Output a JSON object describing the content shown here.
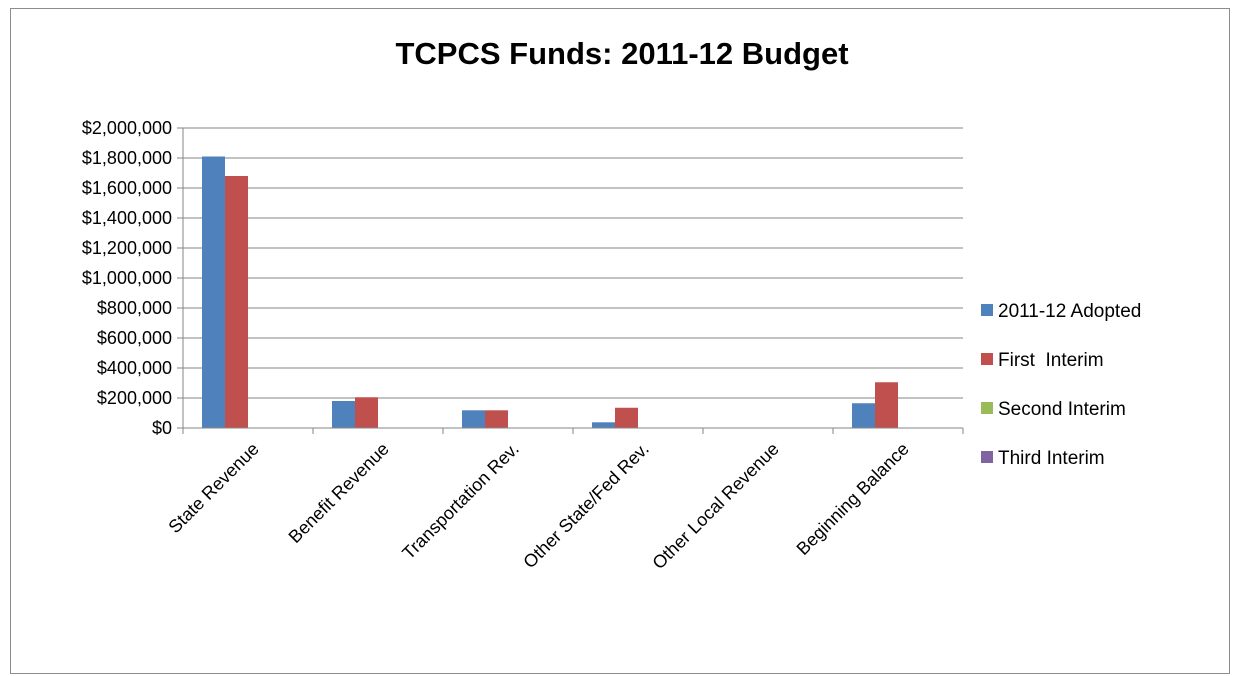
{
  "chart_data": {
    "type": "bar",
    "title": "TCPCS Funds: 2011-12 Budget",
    "categories": [
      "State Revenue",
      "Benefit Revenue",
      "Transportation Rev.",
      "Other State/Fed Rev.",
      "Other Local Revenue",
      "Beginning Balance"
    ],
    "series": [
      {
        "name": "2011-12 Adopted",
        "color": "#4f81bd",
        "values": [
          1810000,
          180000,
          118000,
          38000,
          0,
          165000
        ]
      },
      {
        "name": "First  Interim",
        "color": "#c0504d",
        "values": [
          1680000,
          205000,
          118000,
          135000,
          0,
          305000
        ]
      },
      {
        "name": "Second Interim",
        "color": "#9bbb59",
        "values": [
          0,
          0,
          0,
          0,
          0,
          0
        ]
      },
      {
        "name": "Third Interim",
        "color": "#8064a2",
        "values": [
          0,
          0,
          0,
          0,
          0,
          0
        ]
      }
    ],
    "y_ticks": [
      "$0",
      "$200,000",
      "$400,000",
      "$600,000",
      "$800,000",
      "$1,000,000",
      "$1,200,000",
      "$1,400,000",
      "$1,600,000",
      "$1,800,000",
      "$2,000,000"
    ],
    "ylim": [
      0,
      2000000
    ],
    "grid": true,
    "legend": "right",
    "xlabel": "",
    "ylabel": ""
  }
}
